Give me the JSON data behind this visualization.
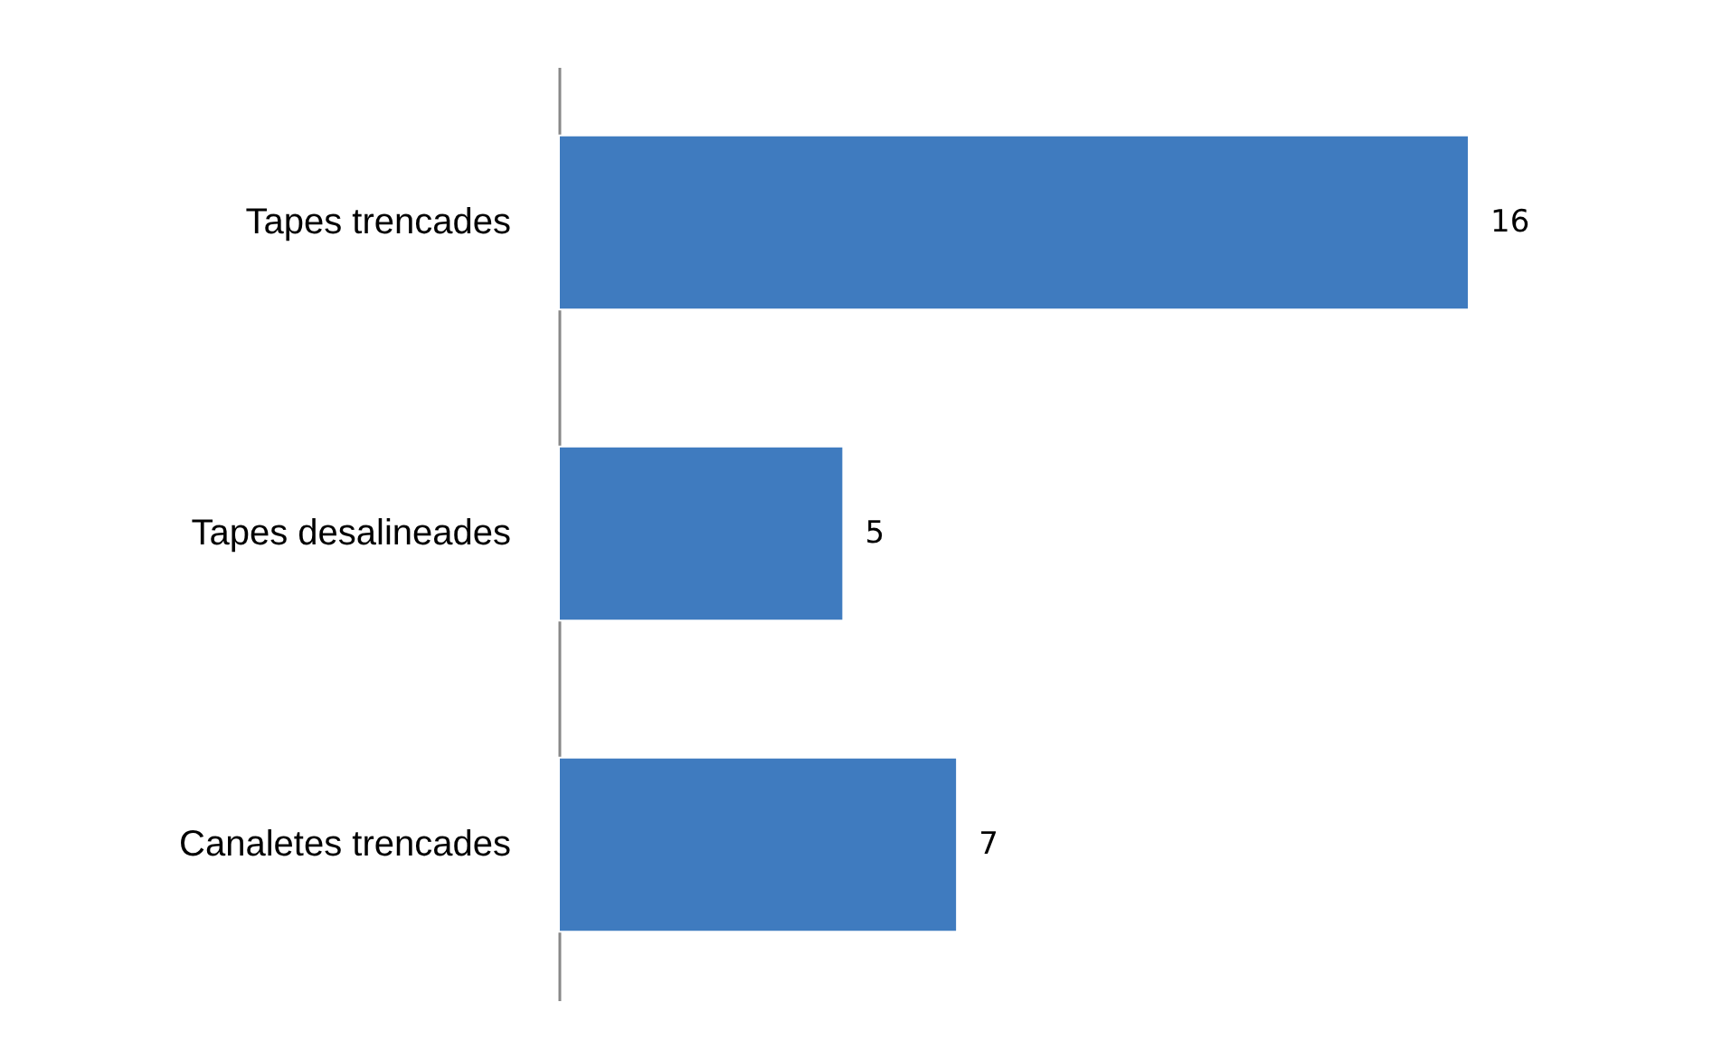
{
  "chart_data": {
    "type": "bar",
    "orientation": "horizontal",
    "categories": [
      "Tapes trencades",
      "Tapes desalineades",
      "Canaletes trencades"
    ],
    "values": [
      16,
      5,
      7
    ],
    "color": "#3f7bbf",
    "data_labels": true
  }
}
